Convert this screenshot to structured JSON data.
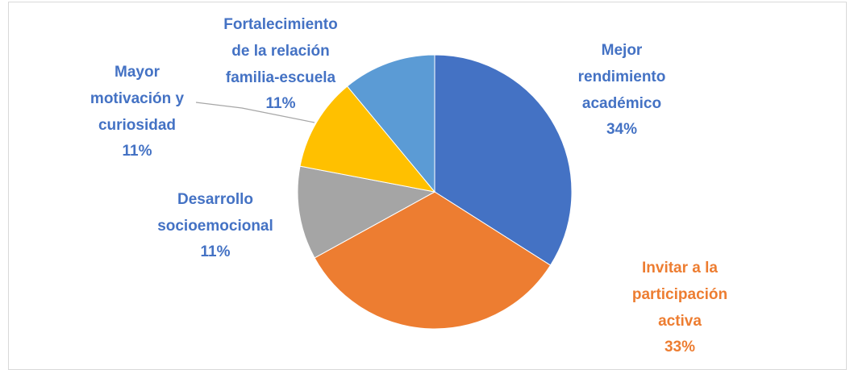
{
  "chart_data": {
    "type": "pie",
    "categories": [
      "Mejor\nrendimiento\nacadémico",
      "Invitar a la\nparticipación\nactiva",
      "Desarrollo\nsocioemocional",
      "Mayor\nmotivación y\ncuriosidad",
      "Fortalecimiento\nde la relación\nfamilia-escuela"
    ],
    "values": [
      34,
      33,
      11,
      11,
      11
    ],
    "value_labels": [
      "34%",
      "33%",
      "11%",
      "11%",
      "11%"
    ],
    "colors": [
      "#4472c4",
      "#ed7d31",
      "#a5a5a5",
      "#ffc000",
      "#5b9bd5"
    ],
    "label_colors": [
      "#4472c4",
      "#ed7d31",
      "#4472c4",
      "#4472c4",
      "#4472c4"
    ]
  }
}
